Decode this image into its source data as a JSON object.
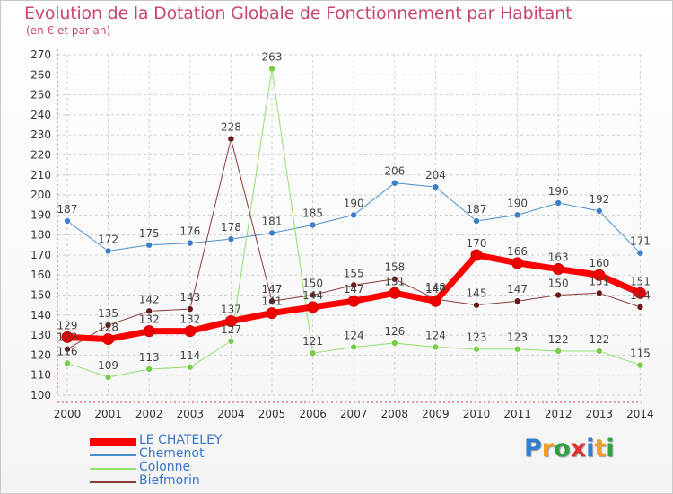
{
  "title": "Evolution de la Dotation Globale de Fonctionnement par Habitant",
  "subtitle": "(en € et par an)",
  "brand": {
    "parts": [
      {
        "text": "P",
        "color": "#2f7fd0"
      },
      {
        "text": "r",
        "color": "#f0a020"
      },
      {
        "text": "o",
        "color": "#30a040"
      },
      {
        "text": "x",
        "color": "#e03030"
      },
      {
        "text": "i",
        "color": "#2f7fd0"
      },
      {
        "text": "t",
        "color": "#f0a020"
      },
      {
        "text": "i",
        "color": "#30a040"
      }
    ]
  },
  "chart_data": {
    "type": "line",
    "x": [
      2000,
      2001,
      2002,
      2003,
      2004,
      2005,
      2006,
      2007,
      2008,
      2009,
      2010,
      2011,
      2012,
      2013,
      2014
    ],
    "yticks": [
      100,
      110,
      120,
      130,
      140,
      150,
      160,
      170,
      180,
      190,
      200,
      210,
      220,
      230,
      240,
      250,
      260,
      270
    ],
    "ylim": [
      100,
      270
    ],
    "grid": true,
    "legend": "bottom-left",
    "series": [
      {
        "name": "Chemenot",
        "color": "#4a8fd0",
        "marker": "#3a7fc8",
        "width": 1,
        "values": [
          187,
          172,
          175,
          176,
          178,
          181,
          185,
          190,
          206,
          204,
          187,
          190,
          196,
          192,
          171
        ],
        "labels": true
      },
      {
        "name": "Colonne",
        "color": "#90e070",
        "marker": "#78cc4a",
        "width": 1,
        "values": [
          116,
          109,
          113,
          114,
          127,
          263,
          121,
          124,
          126,
          124,
          123,
          123,
          122,
          122,
          115
        ],
        "labels": true
      },
      {
        "name": "Biefmorin",
        "color": "#8b3a3a",
        "marker": "#6a1818",
        "width": 1,
        "values": [
          123,
          135,
          142,
          143,
          228,
          147,
          150,
          155,
          158,
          148,
          145,
          147,
          150,
          151,
          144
        ],
        "labels": true
      },
      {
        "name": "LE CHATELEY",
        "color": "#ff0000",
        "marker": "#ee0000",
        "width": 7,
        "values": [
          129,
          128,
          132,
          132,
          137,
          141,
          144,
          147,
          151,
          147,
          170,
          166,
          163,
          160,
          151
        ],
        "labels": true
      }
    ],
    "legend_order": [
      "LE CHATELEY",
      "Chemenot",
      "Colonne",
      "Biefmorin"
    ]
  }
}
